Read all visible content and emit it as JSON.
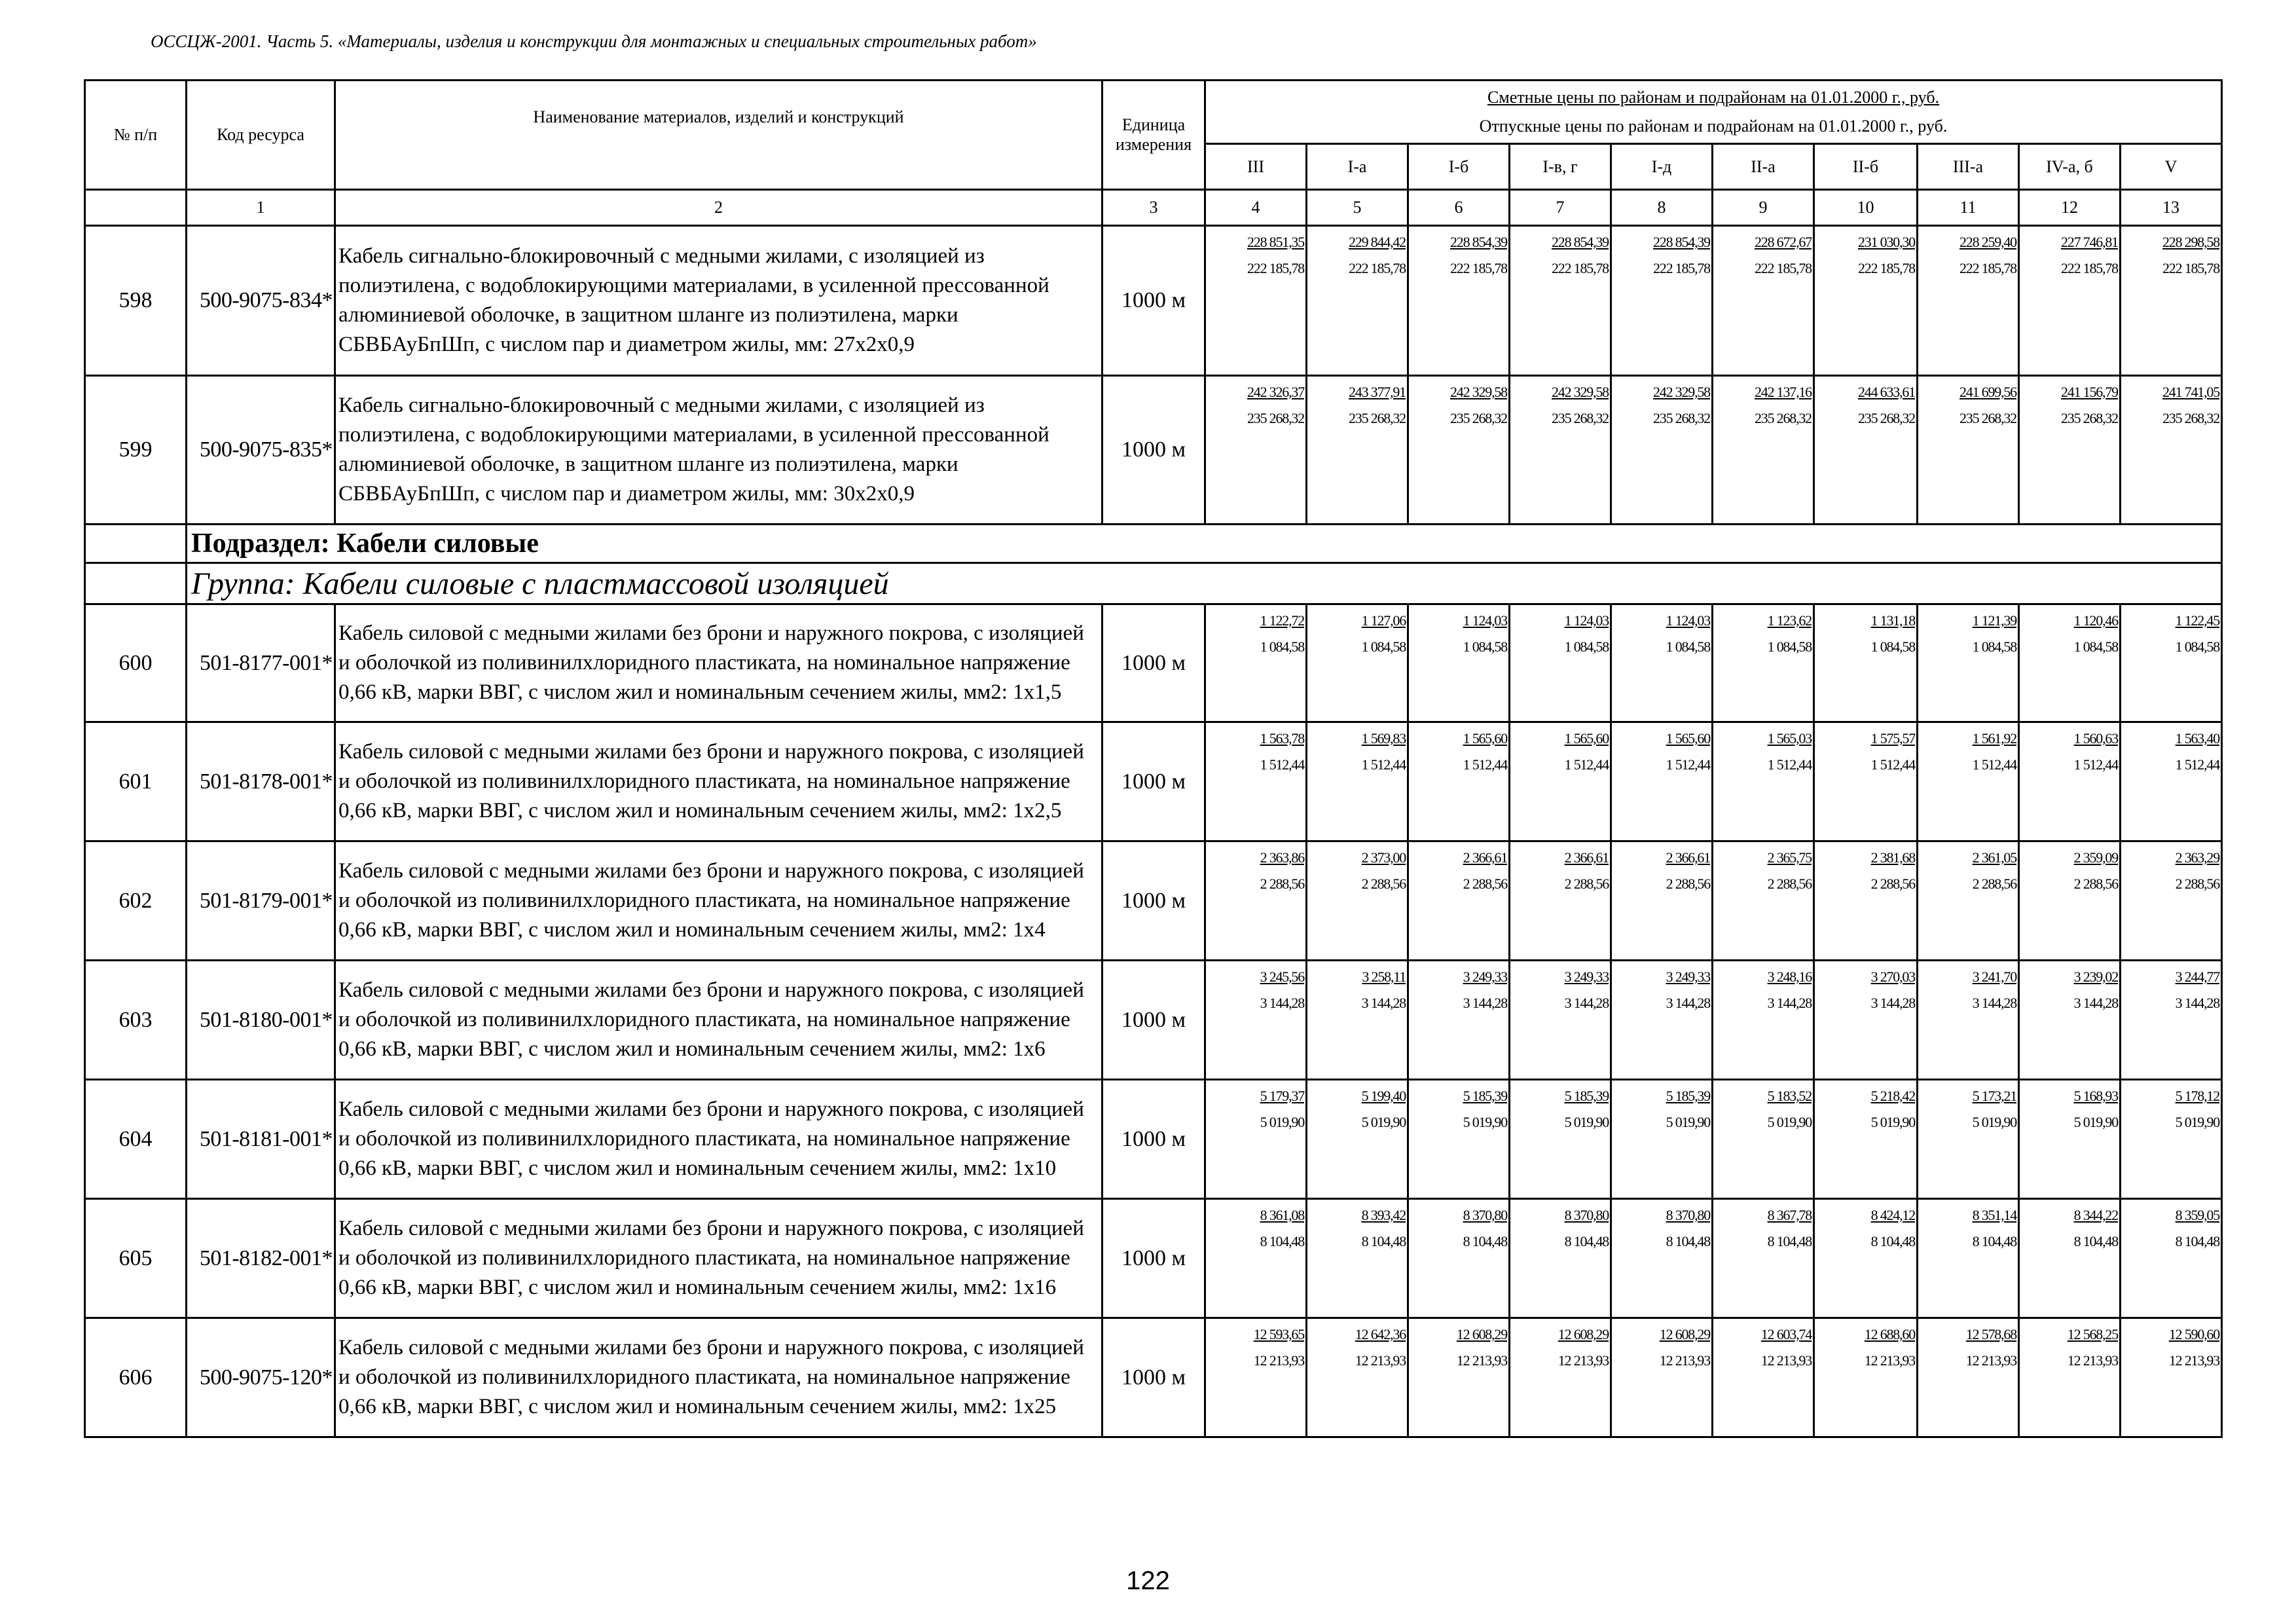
{
  "document_title": "ОССЦЖ-2001. Часть 5. «Материалы, изделия и конструкции для монтажных и специальных строительных работ»",
  "page_number": "122",
  "table": {
    "headers": {
      "no": "№ п/п",
      "code": "Код ресурса",
      "name": "Наименование материалов, изделий и конструкций",
      "unit": "Единица измерения",
      "price_estimated": "Сметные цены по районам и подрайонам на 01.01.2000 г., руб.",
      "price_release": "Отпускные цены по районам и подрайонам на 01.01.2000 г., руб.",
      "regions": [
        "III",
        "I-а",
        "I-б",
        "I-в, г",
        "I-д",
        "II-а",
        "II-б",
        "III-а",
        "IV-а, б",
        "V"
      ]
    },
    "column_numbers": [
      "",
      "1",
      "2",
      "3",
      "4",
      "5",
      "6",
      "7",
      "8",
      "9",
      "10",
      "11",
      "12",
      "13"
    ],
    "rows": [
      {
        "type": "item",
        "no": "598",
        "code": "500-9075-834*",
        "name": "Кабель сигнально-блокировочный с медными жилами, с изоляцией из полиэтилена, с водоблокирующими материалами, в усиленной прессованной алюминиевой оболочке, в защитном шланге из полиэтилена, марки СБВБАуБпШп, с числом пар и диаметром жилы, мм: 27х2х0,9",
        "unit": "1000 м",
        "estimated": [
          "228 851,35",
          "229 844,42",
          "228 854,39",
          "228 854,39",
          "228 854,39",
          "228 672,67",
          "231 030,30",
          "228 259,40",
          "227 746,81",
          "228 298,58"
        ],
        "release": [
          "222 185,78",
          "222 185,78",
          "222 185,78",
          "222 185,78",
          "222 185,78",
          "222 185,78",
          "222 185,78",
          "222 185,78",
          "222 185,78",
          "222 185,78"
        ]
      },
      {
        "type": "item",
        "no": "599",
        "code": "500-9075-835*",
        "name": "Кабель сигнально-блокировочный с медными жилами, с изоляцией из полиэтилена, с водоблокирующими материалами, в усиленной прессованной алюминиевой оболочке, в защитном шланге из полиэтилена, марки СБВБАуБпШп, с числом пар и диаметром жилы, мм: 30х2х0,9",
        "unit": "1000 м",
        "estimated": [
          "242 326,37",
          "243 377,91",
          "242 329,58",
          "242 329,58",
          "242 329,58",
          "242 137,16",
          "244 633,61",
          "241 699,56",
          "241 156,79",
          "241 741,05"
        ],
        "release": [
          "235 268,32",
          "235 268,32",
          "235 268,32",
          "235 268,32",
          "235 268,32",
          "235 268,32",
          "235 268,32",
          "235 268,32",
          "235 268,32",
          "235 268,32"
        ]
      },
      {
        "type": "subsection",
        "label": "Подраздел: Кабели силовые"
      },
      {
        "type": "group",
        "label": "Группа: Кабели силовые с пластмассовой изоляцией"
      },
      {
        "type": "item",
        "no": "600",
        "code": "501-8177-001*",
        "name": "Кабель силовой с медными жилами без брони и наружного покрова, с изоляцией и оболочкой из поливинилхлоридного пластиката, на номинальное напряжение 0,66 кВ, марки ВВГ, с числом жил и номинальным сечением жилы, мм2: 1х1,5",
        "unit": "1000 м",
        "estimated": [
          "1 122,72",
          "1 127,06",
          "1 124,03",
          "1 124,03",
          "1 124,03",
          "1 123,62",
          "1 131,18",
          "1 121,39",
          "1 120,46",
          "1 122,45"
        ],
        "release": [
          "1 084,58",
          "1 084,58",
          "1 084,58",
          "1 084,58",
          "1 084,58",
          "1 084,58",
          "1 084,58",
          "1 084,58",
          "1 084,58",
          "1 084,58"
        ]
      },
      {
        "type": "item",
        "no": "601",
        "code": "501-8178-001*",
        "name": "Кабель силовой с медными жилами без брони и наружного покрова, с изоляцией и оболочкой из поливинилхлоридного пластиката, на номинальное напряжение 0,66 кВ, марки ВВГ, с числом жил и номинальным сечением жилы, мм2: 1х2,5",
        "unit": "1000 м",
        "estimated": [
          "1 563,78",
          "1 569,83",
          "1 565,60",
          "1 565,60",
          "1 565,60",
          "1 565,03",
          "1 575,57",
          "1 561,92",
          "1 560,63",
          "1 563,40"
        ],
        "release": [
          "1 512,44",
          "1 512,44",
          "1 512,44",
          "1 512,44",
          "1 512,44",
          "1 512,44",
          "1 512,44",
          "1 512,44",
          "1 512,44",
          "1 512,44"
        ]
      },
      {
        "type": "item",
        "no": "602",
        "code": "501-8179-001*",
        "name": "Кабель силовой с медными жилами без брони и наружного покрова, с изоляцией и оболочкой из поливинилхлоридного пластиката, на номинальное напряжение 0,66 кВ, марки ВВГ, с числом жил и номинальным сечением жилы, мм2: 1х4",
        "unit": "1000 м",
        "estimated": [
          "2 363,86",
          "2 373,00",
          "2 366,61",
          "2 366,61",
          "2 366,61",
          "2 365,75",
          "2 381,68",
          "2 361,05",
          "2 359,09",
          "2 363,29"
        ],
        "release": [
          "2 288,56",
          "2 288,56",
          "2 288,56",
          "2 288,56",
          "2 288,56",
          "2 288,56",
          "2 288,56",
          "2 288,56",
          "2 288,56",
          "2 288,56"
        ]
      },
      {
        "type": "item",
        "no": "603",
        "code": "501-8180-001*",
        "name": "Кабель силовой с медными жилами без брони и наружного покрова, с изоляцией и оболочкой из поливинилхлоридного пластиката, на номинальное напряжение 0,66 кВ, марки ВВГ, с числом жил и номинальным сечением жилы, мм2: 1х6",
        "unit": "1000 м",
        "estimated": [
          "3 245,56",
          "3 258,11",
          "3 249,33",
          "3 249,33",
          "3 249,33",
          "3 248,16",
          "3 270,03",
          "3 241,70",
          "3 239,02",
          "3 244,77"
        ],
        "release": [
          "3 144,28",
          "3 144,28",
          "3 144,28",
          "3 144,28",
          "3 144,28",
          "3 144,28",
          "3 144,28",
          "3 144,28",
          "3 144,28",
          "3 144,28"
        ]
      },
      {
        "type": "item",
        "no": "604",
        "code": "501-8181-001*",
        "name": "Кабель силовой с медными жилами без брони и наружного покрова, с изоляцией и оболочкой из поливинилхлоридного пластиката, на номинальное напряжение 0,66 кВ, марки ВВГ, с числом жил и номинальным сечением жилы, мм2: 1х10",
        "unit": "1000 м",
        "estimated": [
          "5 179,37",
          "5 199,40",
          "5 185,39",
          "5 185,39",
          "5 185,39",
          "5 183,52",
          "5 218,42",
          "5 173,21",
          "5 168,93",
          "5 178,12"
        ],
        "release": [
          "5 019,90",
          "5 019,90",
          "5 019,90",
          "5 019,90",
          "5 019,90",
          "5 019,90",
          "5 019,90",
          "5 019,90",
          "5 019,90",
          "5 019,90"
        ]
      },
      {
        "type": "item",
        "no": "605",
        "code": "501-8182-001*",
        "name": "Кабель силовой с медными жилами без брони и наружного покрова, с изоляцией и оболочкой из поливинилхлоридного пластиката, на номинальное напряжение 0,66 кВ, марки ВВГ, с числом жил и номинальным сечением жилы, мм2: 1х16",
        "unit": "1000 м",
        "estimated": [
          "8 361,08",
          "8 393,42",
          "8 370,80",
          "8 370,80",
          "8 370,80",
          "8 367,78",
          "8 424,12",
          "8 351,14",
          "8 344,22",
          "8 359,05"
        ],
        "release": [
          "8 104,48",
          "8 104,48",
          "8 104,48",
          "8 104,48",
          "8 104,48",
          "8 104,48",
          "8 104,48",
          "8 104,48",
          "8 104,48",
          "8 104,48"
        ]
      },
      {
        "type": "item",
        "no": "606",
        "code": "500-9075-120*",
        "name": "Кабель силовой с медными жилами без брони и наружного покрова, с изоляцией и оболочкой из поливинилхлоридного пластиката, на номинальное напряжение 0,66 кВ, марки ВВГ, с числом жил и номинальным сечением жилы, мм2: 1х25",
        "unit": "1000 м",
        "estimated": [
          "12 593,65",
          "12 642,36",
          "12 608,29",
          "12 608,29",
          "12 608,29",
          "12 603,74",
          "12 688,60",
          "12 578,68",
          "12 568,25",
          "12 590,60"
        ],
        "release": [
          "12 213,93",
          "12 213,93",
          "12 213,93",
          "12 213,93",
          "12 213,93",
          "12 213,93",
          "12 213,93",
          "12 213,93",
          "12 213,93",
          "12 213,93"
        ]
      }
    ]
  }
}
